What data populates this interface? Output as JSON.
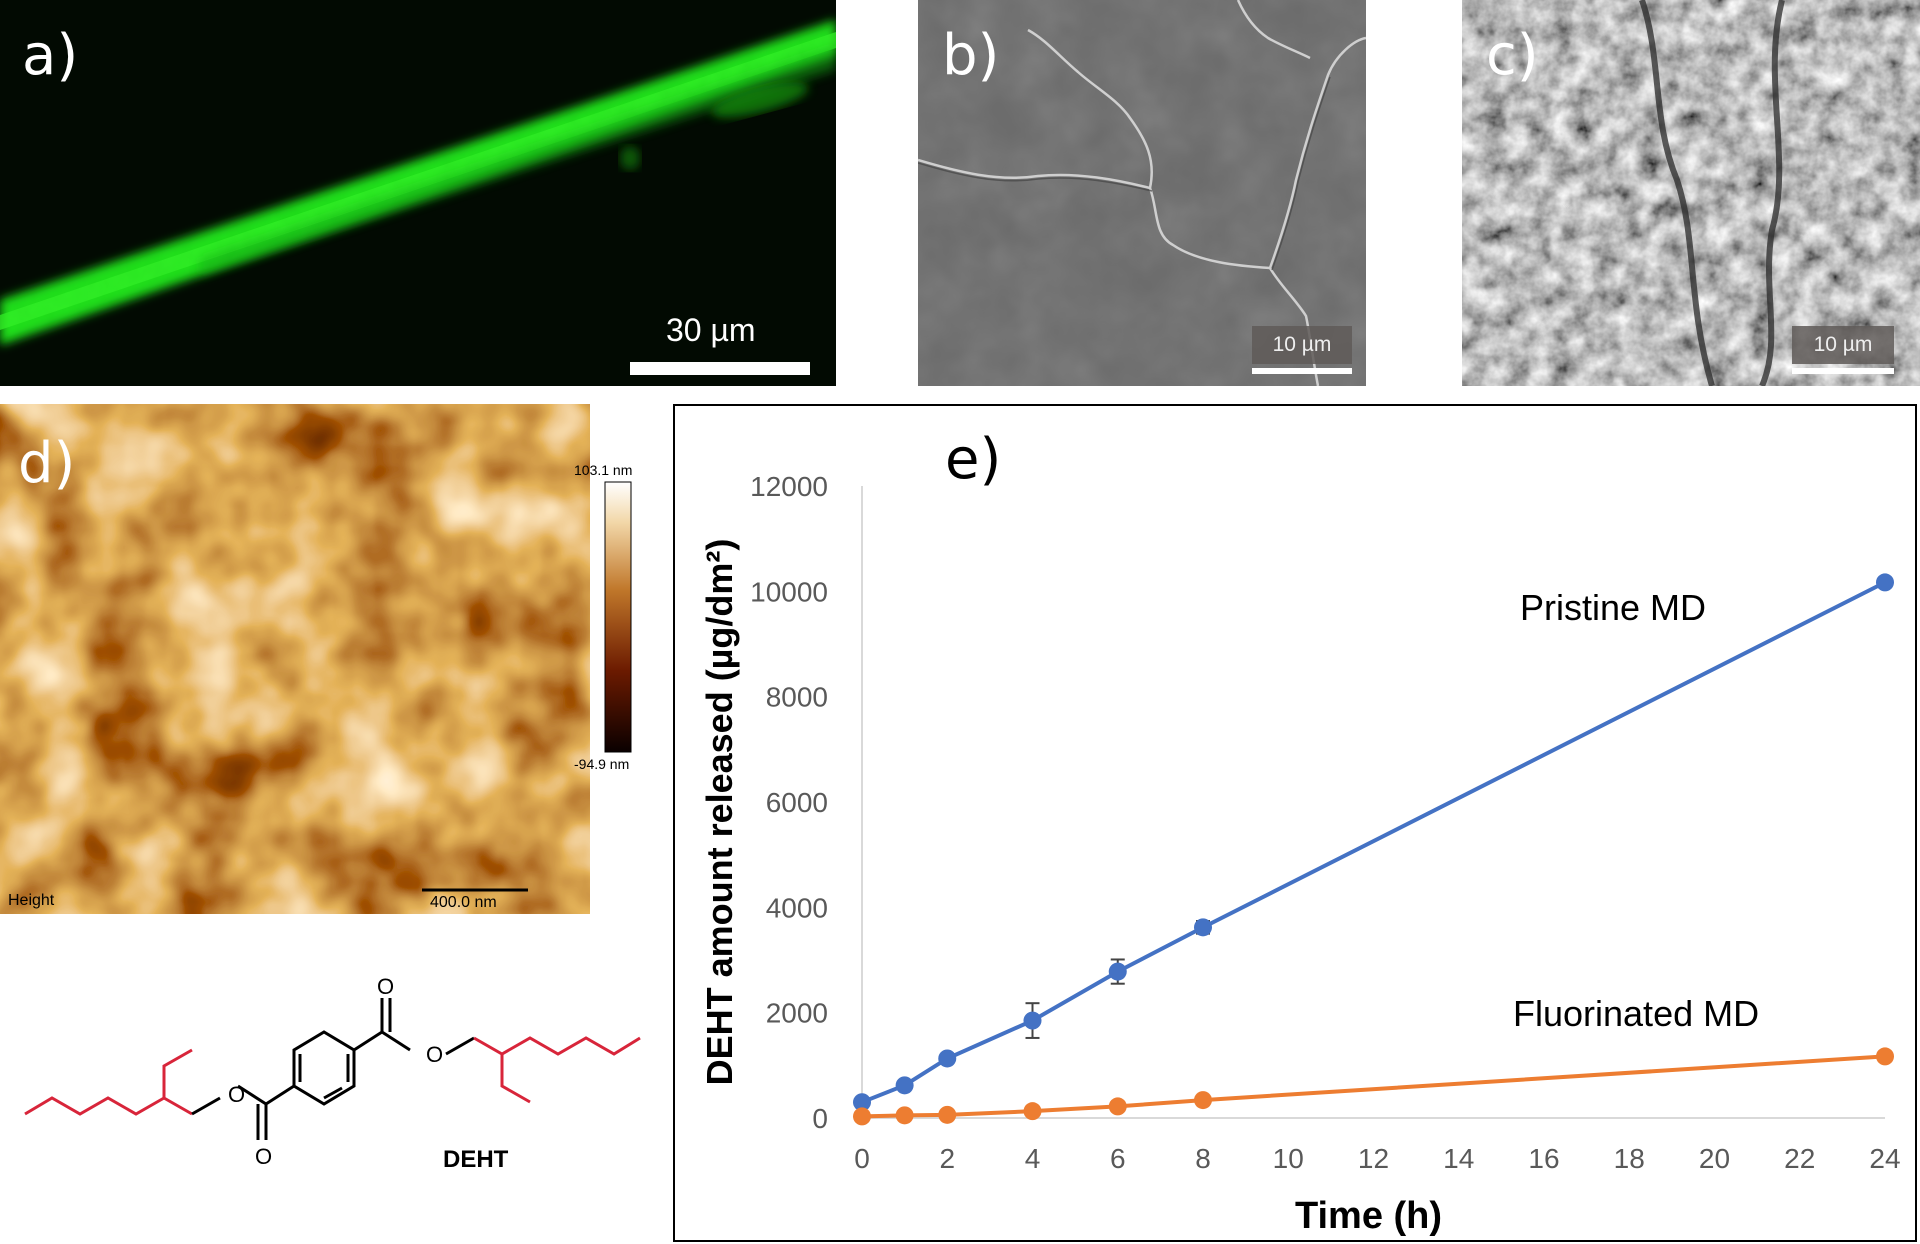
{
  "panels": {
    "a": {
      "label": "a)",
      "scale_bar": "30 µm"
    },
    "b": {
      "label": "b)",
      "scale_bar": "10 µm"
    },
    "c": {
      "label": "c)",
      "scale_bar": "10 µm"
    },
    "d": {
      "label": "d)",
      "colorbar_max": "103.1 nm",
      "colorbar_min": "-94.9 nm",
      "channel": "Height",
      "scale_bar": "400.0 nm"
    },
    "e": {
      "label": "e)"
    }
  },
  "molecule": {
    "name": "DEHT"
  },
  "colors": {
    "pristine": "#4472c4",
    "fluorinated": "#ed7d31",
    "fluor_green": "#22e01a",
    "chain_red": "#d8253a"
  },
  "chart_data": {
    "type": "line",
    "title": "",
    "xlabel": "Time (h)",
    "ylabel": "DEHT amount released (µg/dm²)",
    "x": [
      0,
      1,
      2,
      4,
      6,
      8,
      24
    ],
    "x_ticks": [
      "0",
      "2",
      "4",
      "6",
      "8",
      "10",
      "12",
      "14",
      "16",
      "18",
      "20",
      "22",
      "24"
    ],
    "y_ticks": [
      "0",
      "2000",
      "4000",
      "6000",
      "8000",
      "10000",
      "12000"
    ],
    "xlim": [
      0,
      24
    ],
    "ylim": [
      0,
      12000
    ],
    "series": [
      {
        "name": "Pristine MD",
        "values": [
          300,
          620,
          1130,
          1850,
          2780,
          3620,
          10170
        ],
        "errors": [
          0,
          0,
          80,
          330,
          230,
          120,
          0
        ]
      },
      {
        "name": "Fluorinated MD",
        "values": [
          30,
          50,
          60,
          130,
          220,
          340,
          1170
        ],
        "errors": [
          0,
          0,
          0,
          0,
          0,
          0,
          0
        ]
      }
    ]
  }
}
